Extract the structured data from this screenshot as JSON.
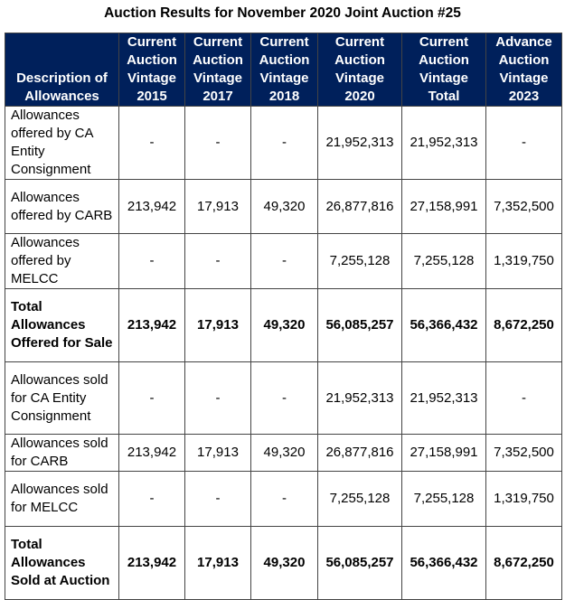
{
  "title": "Auction Results for November 2020 Joint Auction #25",
  "header_bg": "#00205b",
  "columns": [
    "Description of Allowances",
    "Current Auction Vintage 2015",
    "Current Auction Vintage 2017",
    "Current Auction Vintage 2018",
    "Current Auction Vintage 2020",
    "Current Auction Vintage Total",
    "Advance Auction Vintage 2023"
  ],
  "rows": [
    {
      "cells": [
        "Allowances offered by CA Entity Consignment",
        "-",
        "-",
        "-",
        "21,952,313",
        "21,952,313",
        "-"
      ],
      "total": false
    },
    {
      "cells": [
        "Allowances offered by CARB",
        "213,942",
        "17,913",
        "49,320",
        "26,877,816",
        "27,158,991",
        "7,352,500"
      ],
      "total": false
    },
    {
      "cells": [
        "Allowances offered by MELCC",
        "-",
        "-",
        "-",
        "7,255,128",
        "7,255,128",
        "1,319,750"
      ],
      "total": false
    },
    {
      "cells": [
        "Total Allowances Offered for Sale",
        "213,942",
        "17,913",
        "49,320",
        "56,085,257",
        "56,366,432",
        "8,672,250"
      ],
      "total": true
    },
    {
      "cells": [
        "Allowances sold for CA Entity Consignment",
        "-",
        "-",
        "-",
        "21,952,313",
        "21,952,313",
        "-"
      ],
      "total": false
    },
    {
      "cells": [
        "Allowances sold for CARB",
        "213,942",
        "17,913",
        "49,320",
        "26,877,816",
        "27,158,991",
        "7,352,500"
      ],
      "total": false
    },
    {
      "cells": [
        "Allowances sold for MELCC",
        "-",
        "-",
        "-",
        "7,255,128",
        "7,255,128",
        "1,319,750"
      ],
      "total": false
    },
    {
      "cells": [
        "Total Allowances Sold at Auction",
        "213,942",
        "17,913",
        "49,320",
        "56,085,257",
        "56,366,432",
        "8,672,250"
      ],
      "total": true
    }
  ]
}
